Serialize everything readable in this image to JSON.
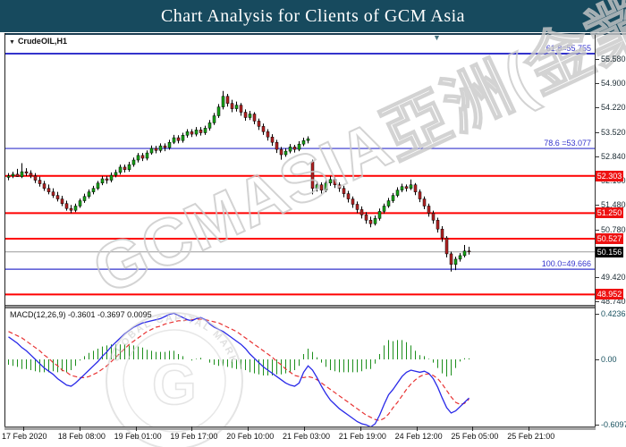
{
  "title": "Chart Analysis for Clients of GCM Asia",
  "symbol_label": "CrudeOIL,H1",
  "icons": {
    "dropdown_icon": "▼",
    "marker_icon": "▼"
  },
  "macd_label": "MACD(12,26,9) -0.3601 -0.3697 0.0095",
  "watermark": {
    "main": "GCMASIA亞洲(金業)",
    "stamp_arc": "GLOBAL CAPITAL MARKETS",
    "stamp_letter": "G"
  },
  "colors": {
    "title_bg": "#174a5e",
    "up": "#17a317",
    "down": "#b22222",
    "wick": "#000000",
    "sr_line": "#ff0000",
    "fib_line": "#3333cc",
    "current_line": "#999999",
    "macd_line": "#2929e8",
    "signal_line": "#e83333",
    "histogram": "#1d8f1d",
    "sr_box_bg": "#ee1111",
    "current_box_bg": "#000000",
    "watermark": "#c9c9c9"
  },
  "price_axis": {
    "ticks": [
      "55.580",
      "54.900",
      "54.220",
      "53.520",
      "52.840",
      "52.160",
      "51.480",
      "50.780",
      "49.420",
      "48.740"
    ],
    "sr_labels": [
      "52.303",
      "51.250",
      "50.527",
      "48.952"
    ],
    "current_label": "50.156"
  },
  "macd_axis": [
    {
      "text": "0.4236",
      "value": 0.4236
    },
    {
      "text": "0.00",
      "value": 0
    },
    {
      "text": "-0.6097",
      "value": -0.6097
    }
  ],
  "date_axis": [
    "17 Feb 2020",
    "18 Feb 08:00",
    "19 Feb 01:00",
    "19 Feb 17:00",
    "20 Feb 10:00",
    "21 Feb 03:00",
    "21 Feb 19:00",
    "24 Feb 12:00",
    "25 Feb 05:00",
    "25 Feb 21:00"
  ],
  "chart_data": {
    "type": "candlestick+macd",
    "symbol": "CrudeOIL",
    "timeframe": "H1",
    "price_range_visible": [
      48.74,
      55.58
    ],
    "fib_levels": [
      {
        "label": "61.8=55.755",
        "value": 55.755
      },
      {
        "label": "78.6 =53.077",
        "value": 53.077
      },
      {
        "label": "100.0=49.666",
        "value": 49.666
      }
    ],
    "sr_levels": [
      52.303,
      51.25,
      50.527,
      48.952
    ],
    "current_price": 50.156,
    "macd_values": {
      "macd": -0.3601,
      "signal": -0.3697,
      "histogram": 0.0095
    },
    "macd_range_visible": [
      -0.6097,
      0.4236
    ],
    "candles": [
      [
        52.26,
        52.38,
        52.18,
        52.3
      ],
      [
        52.3,
        52.42,
        52.24,
        52.35
      ],
      [
        52.35,
        52.5,
        52.27,
        52.28
      ],
      [
        52.28,
        52.66,
        52.24,
        52.42
      ],
      [
        52.42,
        52.52,
        52.3,
        52.38
      ],
      [
        52.38,
        52.46,
        52.24,
        52.3
      ],
      [
        52.3,
        52.38,
        52.1,
        52.18
      ],
      [
        52.18,
        52.28,
        52.0,
        52.08
      ],
      [
        52.08,
        52.16,
        51.88,
        51.95
      ],
      [
        51.95,
        52.06,
        51.78,
        51.85
      ],
      [
        51.85,
        51.95,
        51.68,
        51.75
      ],
      [
        51.75,
        51.85,
        51.58,
        51.65
      ],
      [
        51.65,
        51.74,
        51.45,
        51.52
      ],
      [
        51.52,
        51.6,
        51.32,
        51.38
      ],
      [
        51.38,
        51.48,
        51.25,
        51.33
      ],
      [
        51.33,
        51.52,
        51.28,
        51.45
      ],
      [
        51.45,
        51.66,
        51.4,
        51.6
      ],
      [
        51.6,
        51.8,
        51.54,
        51.72
      ],
      [
        51.72,
        51.92,
        51.66,
        51.85
      ],
      [
        51.85,
        52.02,
        51.78,
        51.95
      ],
      [
        51.95,
        52.16,
        51.9,
        52.1
      ],
      [
        52.1,
        52.3,
        52.04,
        52.22
      ],
      [
        52.22,
        52.3,
        52.08,
        52.18
      ],
      [
        52.18,
        52.4,
        52.12,
        52.32
      ],
      [
        52.32,
        52.48,
        52.26,
        52.4
      ],
      [
        52.4,
        52.62,
        52.34,
        52.55
      ],
      [
        52.55,
        52.62,
        52.4,
        52.48
      ],
      [
        52.48,
        52.7,
        52.42,
        52.62
      ],
      [
        52.62,
        52.82,
        52.56,
        52.75
      ],
      [
        52.75,
        52.95,
        52.68,
        52.88
      ],
      [
        52.88,
        52.95,
        52.72,
        52.8
      ],
      [
        52.8,
        53.02,
        52.74,
        52.95
      ],
      [
        52.95,
        53.16,
        52.9,
        53.08
      ],
      [
        53.08,
        53.15,
        52.94,
        53.02
      ],
      [
        53.02,
        53.22,
        52.96,
        53.15
      ],
      [
        53.15,
        53.22,
        53.0,
        53.1
      ],
      [
        53.1,
        53.32,
        53.04,
        53.25
      ],
      [
        53.25,
        53.46,
        53.2,
        53.38
      ],
      [
        53.38,
        53.45,
        53.22,
        53.3
      ],
      [
        53.3,
        53.52,
        53.24,
        53.45
      ],
      [
        53.45,
        53.62,
        53.38,
        53.55
      ],
      [
        53.55,
        53.62,
        53.4,
        53.48
      ],
      [
        53.48,
        53.68,
        53.42,
        53.6
      ],
      [
        53.6,
        53.68,
        53.44,
        53.52
      ],
      [
        53.52,
        53.72,
        53.46,
        53.65
      ],
      [
        53.65,
        53.88,
        53.58,
        53.8
      ],
      [
        53.8,
        54.08,
        53.74,
        54.0
      ],
      [
        54.0,
        54.33,
        53.94,
        54.25
      ],
      [
        54.25,
        54.7,
        54.18,
        54.55
      ],
      [
        54.55,
        54.62,
        54.26,
        54.35
      ],
      [
        54.35,
        54.45,
        54.1,
        54.2
      ],
      [
        54.2,
        54.4,
        54.12,
        54.3
      ],
      [
        54.3,
        54.36,
        54.0,
        54.1
      ],
      [
        54.1,
        54.18,
        53.86,
        53.95
      ],
      [
        53.95,
        54.14,
        53.88,
        54.05
      ],
      [
        54.05,
        54.1,
        53.76,
        53.85
      ],
      [
        53.85,
        53.92,
        53.6,
        53.7
      ],
      [
        53.7,
        53.78,
        53.46,
        53.55
      ],
      [
        53.55,
        53.62,
        53.3,
        53.4
      ],
      [
        53.4,
        53.48,
        53.15,
        53.25
      ],
      [
        53.25,
        53.32,
        52.95,
        53.05
      ],
      [
        53.05,
        53.12,
        52.76,
        52.9
      ],
      [
        52.9,
        53.08,
        52.84,
        53.0
      ],
      [
        53.0,
        53.2,
        52.94,
        53.12
      ],
      [
        53.12,
        53.18,
        52.96,
        53.05
      ],
      [
        53.05,
        53.28,
        53.0,
        53.2
      ],
      [
        53.2,
        53.38,
        53.14,
        53.3
      ],
      [
        53.3,
        53.42,
        53.22,
        53.35
      ],
      [
        52.7,
        52.76,
        51.78,
        51.95
      ],
      [
        51.95,
        52.14,
        51.86,
        52.05
      ],
      [
        52.05,
        52.12,
        51.8,
        51.9
      ],
      [
        51.9,
        52.18,
        51.84,
        52.1
      ],
      [
        52.1,
        52.3,
        52.02,
        52.2
      ],
      [
        52.2,
        52.26,
        51.96,
        52.05
      ],
      [
        52.05,
        52.12,
        51.85,
        51.95
      ],
      [
        51.95,
        52.02,
        51.7,
        51.8
      ],
      [
        51.8,
        51.88,
        51.55,
        51.65
      ],
      [
        51.65,
        51.72,
        51.4,
        51.5
      ],
      [
        51.5,
        51.58,
        51.25,
        51.35
      ],
      [
        51.35,
        51.44,
        51.1,
        51.2
      ],
      [
        51.2,
        51.28,
        50.95,
        51.05
      ],
      [
        51.05,
        51.15,
        50.85,
        50.95
      ],
      [
        50.95,
        51.18,
        50.9,
        51.1
      ],
      [
        51.1,
        51.38,
        51.04,
        51.3
      ],
      [
        51.3,
        51.52,
        51.24,
        51.45
      ],
      [
        51.45,
        51.68,
        51.4,
        51.6
      ],
      [
        51.6,
        51.82,
        51.54,
        51.75
      ],
      [
        51.75,
        51.98,
        51.7,
        51.9
      ],
      [
        51.9,
        52.08,
        51.84,
        52.0
      ],
      [
        52.0,
        52.06,
        51.86,
        51.95
      ],
      [
        51.95,
        52.2,
        51.9,
        52.05
      ],
      [
        52.05,
        52.1,
        51.76,
        51.85
      ],
      [
        51.85,
        51.92,
        51.56,
        51.65
      ],
      [
        51.65,
        51.72,
        51.36,
        51.45
      ],
      [
        51.45,
        51.52,
        51.15,
        51.25
      ],
      [
        51.25,
        51.32,
        50.95,
        51.05
      ],
      [
        51.05,
        51.12,
        50.7,
        50.8
      ],
      [
        50.8,
        50.88,
        50.44,
        50.55
      ],
      [
        50.55,
        50.6,
        50.0,
        50.1
      ],
      [
        50.1,
        50.16,
        49.6,
        49.8
      ],
      [
        49.8,
        50.02,
        49.64,
        49.95
      ],
      [
        49.95,
        50.12,
        49.88,
        50.05
      ],
      [
        50.05,
        50.35,
        50.0,
        50.18
      ],
      [
        50.18,
        50.3,
        50.08,
        50.156
      ]
    ],
    "macd": [
      0.21,
      0.18,
      0.15,
      0.11,
      0.08,
      0.04,
      0.0,
      -0.04,
      -0.08,
      -0.11,
      -0.14,
      -0.18,
      -0.21,
      -0.24,
      -0.25,
      -0.22,
      -0.18,
      -0.14,
      -0.1,
      -0.06,
      -0.02,
      0.03,
      0.07,
      0.12,
      0.16,
      0.2,
      0.24,
      0.27,
      0.3,
      0.32,
      0.34,
      0.35,
      0.36,
      0.37,
      0.38,
      0.4,
      0.42,
      0.43,
      0.41,
      0.39,
      0.37,
      0.36,
      0.38,
      0.39,
      0.37,
      0.33,
      0.3,
      0.28,
      0.26,
      0.23,
      0.2,
      0.17,
      0.14,
      0.1,
      0.05,
      0.01,
      -0.03,
      -0.07,
      -0.1,
      -0.13,
      -0.16,
      -0.19,
      -0.22,
      -0.24,
      -0.25,
      -0.22,
      -0.12,
      -0.06,
      -0.1,
      -0.17,
      -0.25,
      -0.32,
      -0.38,
      -0.42,
      -0.46,
      -0.49,
      -0.52,
      -0.55,
      -0.58,
      -0.6,
      -0.61,
      -0.63,
      -0.6,
      -0.52,
      -0.42,
      -0.33,
      -0.28,
      -0.22,
      -0.16,
      -0.12,
      -0.1,
      -0.11,
      -0.12,
      -0.11,
      -0.13,
      -0.18,
      -0.26,
      -0.36,
      -0.45,
      -0.5,
      -0.48,
      -0.44,
      -0.4,
      -0.3601
    ],
    "signal": [
      0.26,
      0.24,
      0.22,
      0.2,
      0.17,
      0.14,
      0.11,
      0.08,
      0.04,
      0.01,
      -0.03,
      -0.06,
      -0.1,
      -0.12,
      -0.15,
      -0.16,
      -0.17,
      -0.17,
      -0.16,
      -0.14,
      -0.12,
      -0.09,
      -0.06,
      -0.02,
      0.02,
      0.06,
      0.1,
      0.14,
      0.17,
      0.2,
      0.23,
      0.26,
      0.28,
      0.3,
      0.31,
      0.33,
      0.34,
      0.35,
      0.36,
      0.36,
      0.37,
      0.37,
      0.375,
      0.375,
      0.37,
      0.36,
      0.35,
      0.34,
      0.32,
      0.3,
      0.28,
      0.26,
      0.23,
      0.2,
      0.17,
      0.14,
      0.11,
      0.08,
      0.05,
      0.02,
      -0.02,
      -0.05,
      -0.09,
      -0.12,
      -0.15,
      -0.16,
      -0.17,
      -0.16,
      -0.17,
      -0.19,
      -0.22,
      -0.25,
      -0.28,
      -0.31,
      -0.34,
      -0.37,
      -0.4,
      -0.43,
      -0.46,
      -0.49,
      -0.52,
      -0.54,
      -0.56,
      -0.57,
      -0.55,
      -0.51,
      -0.45,
      -0.4,
      -0.34,
      -0.28,
      -0.23,
      -0.19,
      -0.16,
      -0.14,
      -0.135,
      -0.15,
      -0.18,
      -0.23,
      -0.29,
      -0.35,
      -0.4,
      -0.42,
      -0.41,
      -0.3697
    ]
  }
}
